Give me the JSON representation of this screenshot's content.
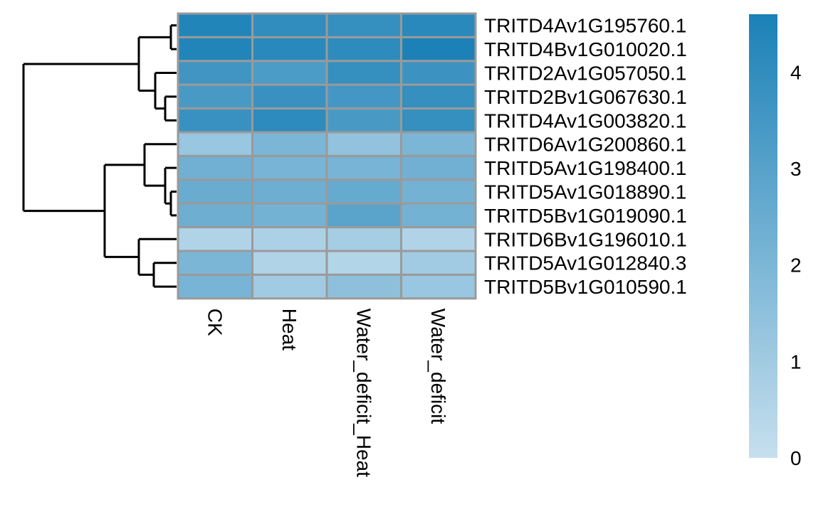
{
  "chart_data": {
    "type": "heatmap",
    "title": "",
    "xlabel": "",
    "ylabel": "",
    "columns": [
      "CK",
      "Heat",
      "Water_deficit_Heat",
      "Water_deficit"
    ],
    "rows": [
      "TRITD4Av1G195760.1",
      "TRITD4Bv1G010020.1",
      "TRITD2Av1G057050.1",
      "TRITD2Bv1G067630.1",
      "TRITD4Av1G003820.1",
      "TRITD6Av1G200860.1",
      "TRITD5Av1G198400.1",
      "TRITD5Av1G018890.1",
      "TRITD5Bv1G019090.1",
      "TRITD6Bv1G196010.1",
      "TRITD5Av1G012840.3",
      "TRITD5Bv1G010590.1"
    ],
    "values": [
      [
        4.4,
        4.0,
        3.9,
        4.2
      ],
      [
        4.4,
        4.2,
        4.1,
        4.6
      ],
      [
        3.6,
        3.3,
        3.9,
        3.7
      ],
      [
        3.4,
        3.8,
        3.5,
        3.9
      ],
      [
        3.8,
        4.1,
        3.4,
        3.9
      ],
      [
        1.2,
        2.0,
        1.4,
        2.0
      ],
      [
        2.3,
        2.1,
        2.1,
        2.3
      ],
      [
        2.5,
        2.4,
        2.6,
        2.2
      ],
      [
        2.4,
        2.2,
        2.9,
        2.2
      ],
      [
        0.6,
        0.7,
        0.9,
        0.6
      ],
      [
        2.0,
        0.6,
        0.5,
        1.0
      ],
      [
        2.1,
        1.0,
        1.5,
        1.2
      ]
    ],
    "color_scale": {
      "min": 0,
      "max": 4.6,
      "low_color": "#c6dfee",
      "high_color": "#1b81b7"
    },
    "legend": {
      "ticks": [
        0,
        1,
        2,
        3,
        4
      ],
      "placement": "right"
    },
    "row_dendrogram": "left",
    "cell_border_color": "#9a9a9a"
  }
}
